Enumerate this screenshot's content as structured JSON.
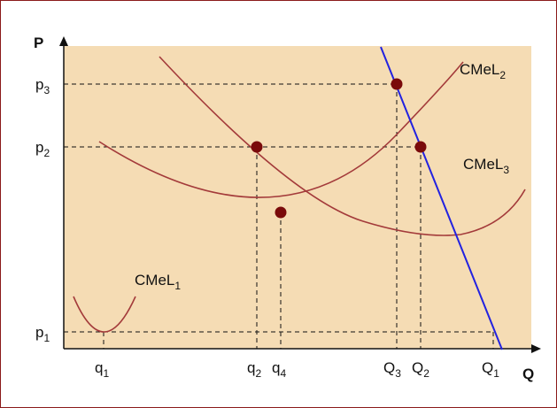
{
  "axes": {
    "y_label": "P",
    "x_label": "Q"
  },
  "price_labels": [
    {
      "base": "p",
      "sub": "3"
    },
    {
      "base": "p",
      "sub": "2"
    },
    {
      "base": "p",
      "sub": "1"
    }
  ],
  "quantity_labels": [
    {
      "base": "q",
      "sub": "1"
    },
    {
      "base": "q",
      "sub": "2"
    },
    {
      "base": "q",
      "sub": "4"
    },
    {
      "base": "Q",
      "sub": "3"
    },
    {
      "base": "Q",
      "sub": "2"
    },
    {
      "base": "Q",
      "sub": "1"
    }
  ],
  "curve_labels": [
    {
      "base": "CMeL",
      "sub": "1"
    },
    {
      "base": "CMeL",
      "sub": "2"
    },
    {
      "base": "CMeL",
      "sub": "3"
    }
  ],
  "colors": {
    "plot_background": "#f5dcb4",
    "curves": "#a33a3a",
    "demand": "#2222e0",
    "points": "#7a0a0a",
    "frame": "#8b1a1a"
  }
}
